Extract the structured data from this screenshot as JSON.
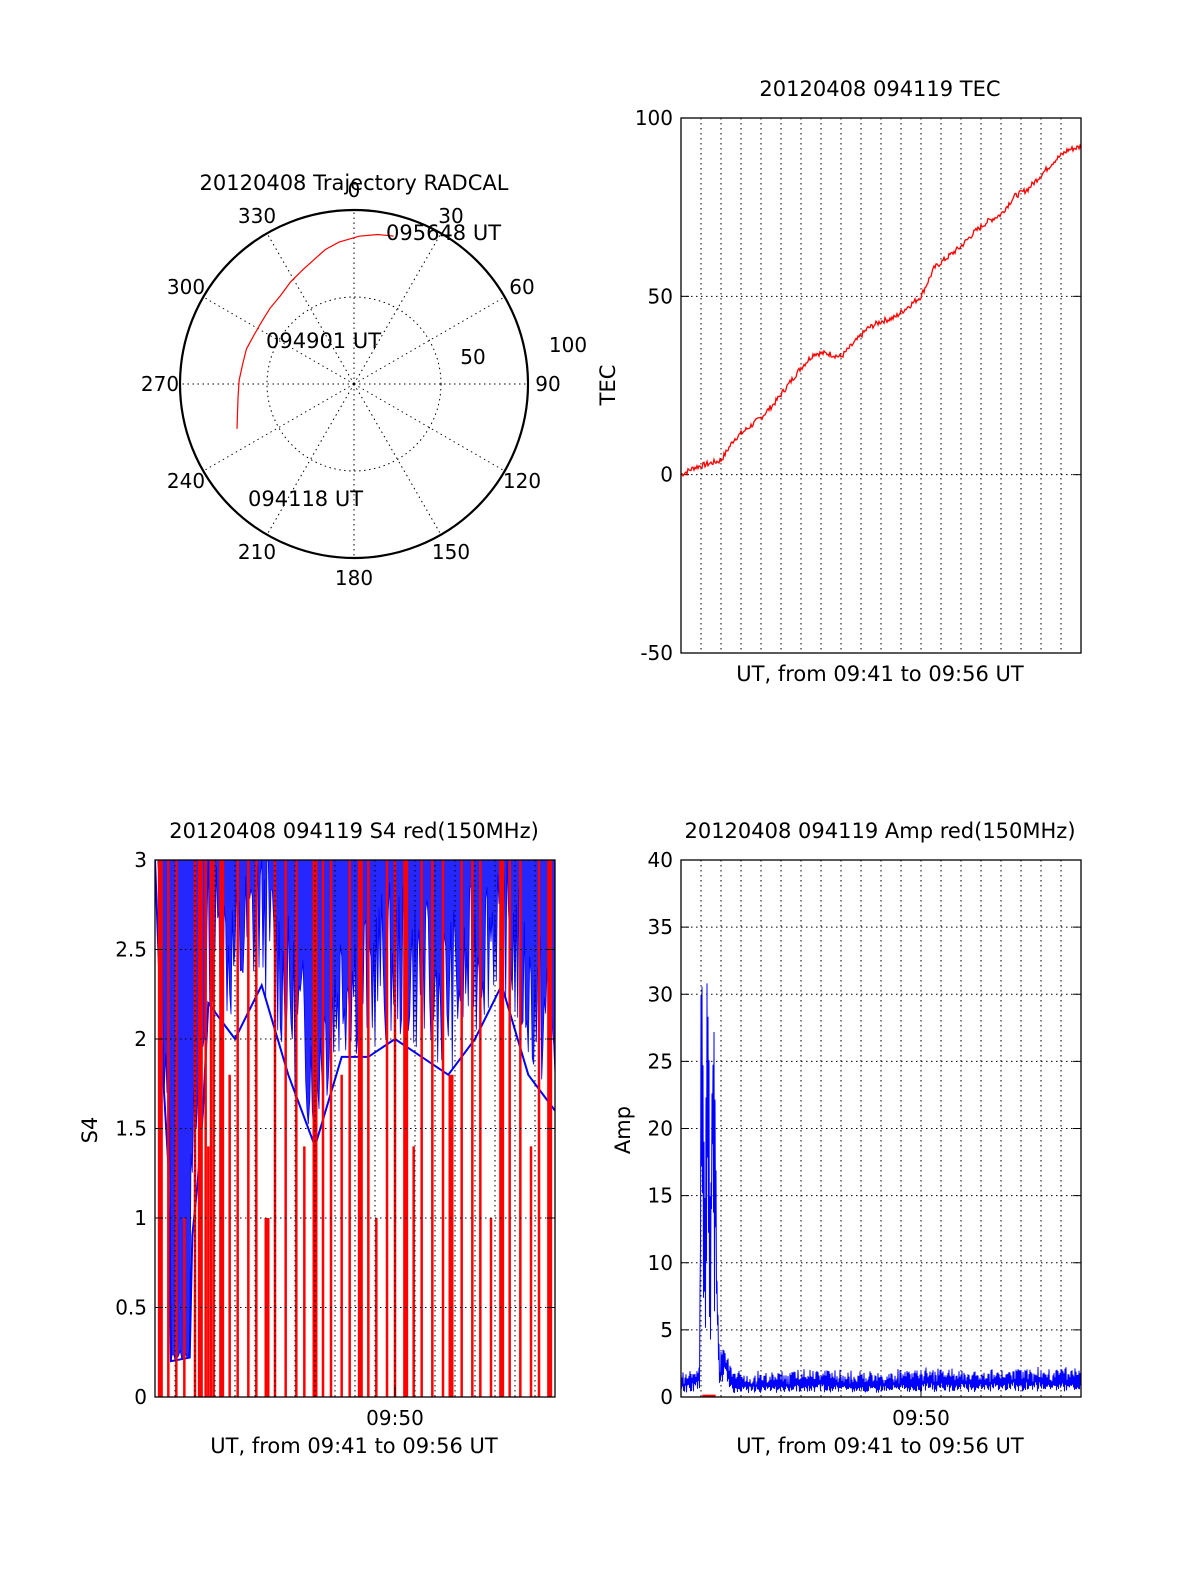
{
  "colors": {
    "red": "#ff0000",
    "blue": "#0000ff",
    "axis": "#000000"
  },
  "chart_data": [
    {
      "id": "trajectory",
      "type": "polar",
      "title": "20120408 Trajectory RADCAL",
      "angle_labels": [
        "0",
        "30",
        "60",
        "90",
        "120",
        "150",
        "180",
        "210",
        "240",
        "270",
        "300",
        "330"
      ],
      "radius_labels": [
        "50",
        "100"
      ],
      "rlim": [
        0,
        100
      ],
      "angle_direction": "clockwise-from-top",
      "grid": true,
      "series": [
        {
          "color": "red",
          "points": [
            {
              "az": 249,
              "r": 72
            },
            {
              "az": 256,
              "r": 69
            },
            {
              "az": 264,
              "r": 67
            },
            {
              "az": 272,
              "r": 66
            },
            {
              "az": 280,
              "r": 65
            },
            {
              "az": 288,
              "r": 65
            },
            {
              "az": 296,
              "r": 64
            },
            {
              "az": 304,
              "r": 64
            },
            {
              "az": 312,
              "r": 65
            },
            {
              "az": 320,
              "r": 66
            },
            {
              "az": 328,
              "r": 69
            },
            {
              "az": 336,
              "r": 72
            },
            {
              "az": 342,
              "r": 75
            },
            {
              "az": 348,
              "r": 79
            },
            {
              "az": 354,
              "r": 82
            },
            {
              "az": 2,
              "r": 85
            },
            {
              "az": 9,
              "r": 87
            },
            {
              "az": 15,
              "r": 88
            }
          ]
        }
      ],
      "annotations": [
        {
          "text": "095648 UT",
          "at": "end"
        },
        {
          "text": "094901 UT",
          "at": "middle"
        },
        {
          "text": "094118 UT",
          "at": "start"
        }
      ]
    },
    {
      "id": "tec",
      "type": "line",
      "title": "20120408 094119 TEC",
      "xlabel": "UT, from 09:41 to 09:56 UT",
      "ylabel": "TEC",
      "xlim": [
        0,
        15
      ],
      "ylim": [
        -50,
        100
      ],
      "yticks": [
        "-50",
        "0",
        "50",
        "100"
      ],
      "xticks": [],
      "grid": true,
      "series": [
        {
          "color": "red",
          "points": [
            {
              "x": 0.0,
              "y": 0
            },
            {
              "x": 0.5,
              "y": 2
            },
            {
              "x": 1.0,
              "y": 3
            },
            {
              "x": 1.5,
              "y": 4
            },
            {
              "x": 2.0,
              "y": 10
            },
            {
              "x": 2.5,
              "y": 13
            },
            {
              "x": 3.0,
              "y": 16
            },
            {
              "x": 3.5,
              "y": 20
            },
            {
              "x": 4.0,
              "y": 25
            },
            {
              "x": 4.5,
              "y": 30
            },
            {
              "x": 5.0,
              "y": 34
            },
            {
              "x": 5.5,
              "y": 34
            },
            {
              "x": 6.0,
              "y": 33
            },
            {
              "x": 6.5,
              "y": 37
            },
            {
              "x": 7.0,
              "y": 41
            },
            {
              "x": 7.5,
              "y": 43
            },
            {
              "x": 8.0,
              "y": 44
            },
            {
              "x": 8.5,
              "y": 47
            },
            {
              "x": 9.0,
              "y": 50
            },
            {
              "x": 9.5,
              "y": 58
            },
            {
              "x": 10.0,
              "y": 61
            },
            {
              "x": 10.5,
              "y": 64
            },
            {
              "x": 11.0,
              "y": 68
            },
            {
              "x": 11.5,
              "y": 71
            },
            {
              "x": 12.0,
              "y": 73
            },
            {
              "x": 12.5,
              "y": 78
            },
            {
              "x": 13.0,
              "y": 80
            },
            {
              "x": 13.5,
              "y": 84
            },
            {
              "x": 14.0,
              "y": 88
            },
            {
              "x": 14.5,
              "y": 91
            },
            {
              "x": 15.0,
              "y": 92
            }
          ]
        }
      ]
    },
    {
      "id": "s4",
      "type": "line",
      "title": "20120408 094119 S4 red(150MHz)",
      "xlabel": "UT, from 09:41 to 09:56 UT",
      "ylabel": "S4",
      "xlim": [
        0,
        15
      ],
      "ylim": [
        0,
        3
      ],
      "yticks": [
        "0",
        "0.5",
        "1",
        "1.5",
        "2",
        "2.5",
        "3"
      ],
      "xticks": [
        {
          "x": 9,
          "label": "09:50"
        }
      ],
      "grid": true,
      "series": [
        {
          "color": "blue",
          "points": [
            {
              "x": 0.0,
              "y": 3
            },
            {
              "x": 0.3,
              "y": 1.8
            },
            {
              "x": 0.5,
              "y": 1.3
            },
            {
              "x": 0.6,
              "y": 0.2
            },
            {
              "x": 1.3,
              "y": 0.22
            },
            {
              "x": 1.4,
              "y": 0.9
            },
            {
              "x": 1.6,
              "y": 1.2
            },
            {
              "x": 1.8,
              "y": 1.6
            },
            {
              "x": 2.0,
              "y": 2.2
            },
            {
              "x": 3.0,
              "y": 2.0
            },
            {
              "x": 4.0,
              "y": 2.3
            },
            {
              "x": 5.0,
              "y": 1.8
            },
            {
              "x": 6.0,
              "y": 1.4
            },
            {
              "x": 7.0,
              "y": 1.9
            },
            {
              "x": 8.0,
              "y": 1.9
            },
            {
              "x": 9.0,
              "y": 2.0
            },
            {
              "x": 10.0,
              "y": 1.9
            },
            {
              "x": 11.0,
              "y": 1.8
            },
            {
              "x": 12.0,
              "y": 2.0
            },
            {
              "x": 13.0,
              "y": 2.3
            },
            {
              "x": 14.0,
              "y": 1.8
            },
            {
              "x": 15.0,
              "y": 1.6
            }
          ]
        },
        {
          "color": "red",
          "spikes_x": [
            0.2,
            0.5,
            0.8,
            1.1,
            1.5,
            1.7,
            1.9,
            2.0,
            2.1,
            2.2,
            2.5,
            2.8,
            3.1,
            3.5,
            3.8,
            4.2,
            4.5,
            4.9,
            5.3,
            5.6,
            6.0,
            6.3,
            6.6,
            7.0,
            7.3,
            7.7,
            8.0,
            8.3,
            8.7,
            9.0,
            9.4,
            9.7,
            10.0,
            10.4,
            10.8,
            11.1,
            11.5,
            11.9,
            12.2,
            12.6,
            13.0,
            13.3,
            13.7,
            14.1,
            14.4,
            14.8
          ]
        }
      ]
    },
    {
      "id": "amp",
      "type": "line",
      "title": "20120408 094119 Amp red(150MHz)",
      "xlabel": "UT, from 09:41 to 09:56 UT",
      "ylabel": "Amp",
      "xlim": [
        0,
        15
      ],
      "ylim": [
        0,
        40
      ],
      "yticks": [
        "0",
        "5",
        "10",
        "15",
        "20",
        "25",
        "30",
        "35",
        "40"
      ],
      "xticks": [
        {
          "x": 9,
          "label": "09:50"
        }
      ],
      "grid": true,
      "series": [
        {
          "color": "blue",
          "points": [
            {
              "x": 0.0,
              "y": 1
            },
            {
              "x": 0.6,
              "y": 1.5
            },
            {
              "x": 0.7,
              "y": 2
            },
            {
              "x": 0.75,
              "y": 30
            },
            {
              "x": 0.9,
              "y": 12
            },
            {
              "x": 1.0,
              "y": 31
            },
            {
              "x": 1.1,
              "y": 10
            },
            {
              "x": 1.2,
              "y": 28
            },
            {
              "x": 1.35,
              "y": 9
            },
            {
              "x": 1.45,
              "y": 2
            },
            {
              "x": 1.6,
              "y": 3
            },
            {
              "x": 2.0,
              "y": 1
            },
            {
              "x": 3.0,
              "y": 1
            },
            {
              "x": 5.0,
              "y": 1.2
            },
            {
              "x": 7.0,
              "y": 1
            },
            {
              "x": 9.0,
              "y": 1.3
            },
            {
              "x": 11.0,
              "y": 1.2
            },
            {
              "x": 13.0,
              "y": 1.4
            },
            {
              "x": 15.0,
              "y": 1.3
            }
          ]
        },
        {
          "color": "red",
          "points": [
            {
              "x": 0.8,
              "y": 0.1
            },
            {
              "x": 1.3,
              "y": 0.1
            }
          ]
        }
      ]
    }
  ]
}
